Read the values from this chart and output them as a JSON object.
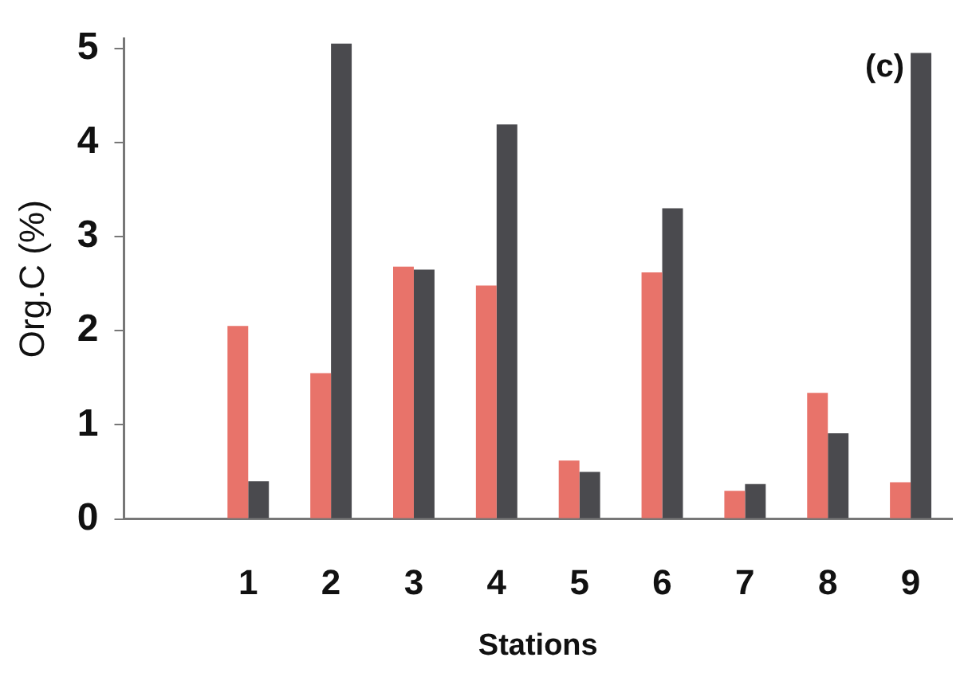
{
  "chart_data": {
    "type": "bar",
    "xlabel": "Stations",
    "ylabel": "Org.C (%)",
    "annotations": [
      "(c)"
    ],
    "categories": [
      null,
      "1",
      "2",
      "3",
      "4",
      "5",
      "6",
      "7",
      "8",
      "9"
    ],
    "series": [
      {
        "color": "#e8736a",
        "values": [
          null,
          2.05,
          1.55,
          2.68,
          2.48,
          0.62,
          2.62,
          0.3,
          1.34,
          0.39
        ]
      },
      {
        "color": "#4a4a4e",
        "values": [
          null,
          0.4,
          5.05,
          2.65,
          4.19,
          0.5,
          3.3,
          0.37,
          0.91,
          4.95
        ]
      }
    ],
    "ylim": [
      0,
      5.1
    ],
    "yticks": [
      0,
      1,
      2,
      3,
      4,
      5
    ],
    "grid": false,
    "legend": false
  }
}
